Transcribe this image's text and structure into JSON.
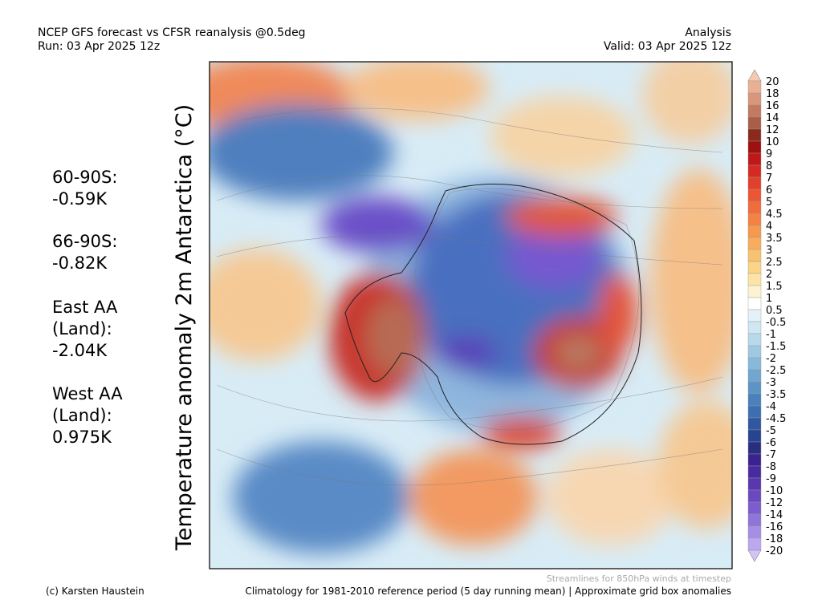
{
  "header": {
    "title": "NCEP GFS forecast vs CFSR reanalysis @0.5deg",
    "run": "Run: 03 Apr 2025 12z",
    "mode": "Analysis",
    "valid": "Valid: 03 Apr 2025 12z"
  },
  "stats": [
    {
      "lines": [
        "60-90S:",
        " -0.59K"
      ]
    },
    {
      "lines": [
        "66-90S:",
        " -0.82K"
      ]
    },
    {
      "lines": [
        "East AA",
        " (Land):",
        " -2.04K"
      ]
    },
    {
      "lines": [
        "West AA",
        " (Land):",
        " 0.975K"
      ]
    }
  ],
  "map": {
    "axis_label": "Temperature anomaly 2m Antarctica (°C)"
  },
  "colorbar": {
    "labels": [
      "20",
      "18",
      "16",
      "14",
      "12",
      "10",
      "9",
      "8",
      "7",
      "6",
      "5",
      "4.5",
      "4",
      "3.5",
      "3",
      "2.5",
      "2",
      "1.5",
      "1",
      "0.5",
      "-0.5",
      "-1",
      "-1.5",
      "-2",
      "-2.5",
      "-3",
      "-3.5",
      "-4",
      "-4.5",
      "-5",
      "-6",
      "-7",
      "-8",
      "-9",
      "-10",
      "-12",
      "-14",
      "-16",
      "-18",
      "-20"
    ]
  },
  "footer": {
    "streamlines": "Streamlines for 850hPa winds at timestep",
    "credit": "(c) Karsten Haustein",
    "note": "Climatology for 1981-2010 reference period (5 day running mean) | Approximate grid box anomalies"
  }
}
